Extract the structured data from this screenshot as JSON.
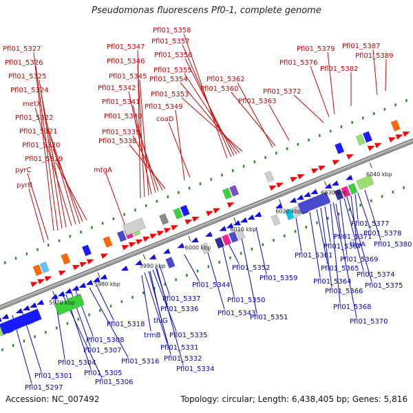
{
  "title": "Pseudomonas fluorescens Pf0-1, complete genome",
  "footer": {
    "accession": "Accession: NC_007492",
    "summary": "Topology: circular; Length: 6,438,405 bp; Genes: 5,816"
  },
  "colors": {
    "upper_label": "#cc0000",
    "lower_label": "#0000cc",
    "upper_arrow": "#ff0000",
    "lower_arrow": "#1010e0",
    "backbone": "#9a9a9a",
    "dot": "#2e8b2e"
  },
  "ticks": [
    "5970 kbp",
    "5980 kbp",
    "5990 kbp",
    "6000 kbp",
    "6010 kbp",
    "6020 kbp",
    "6030 kbp",
    "6040 kbp"
  ],
  "upper_labels": [
    "Pfl01_5327",
    "Pfl01_5326",
    "Pfl01_5325",
    "Pfl01_5324",
    "metX",
    "Pfl01_5322",
    "Pfl01_5321",
    "Pfl01_5320",
    "Pfl01_5319",
    "pyrC",
    "pyrB",
    "mtgA",
    "Pfl01_5347",
    "Pfl01_5346",
    "Pfl01_5345",
    "Pfl01_5342",
    "Pfl01_5341",
    "Pfl01_5340",
    "Pfl01_5339",
    "Pfl01_5338",
    "Pfl01_5358",
    "Pfl01_5357",
    "Pfl01_5356",
    "Pfl01_5355",
    "Pfl01_5354",
    "Pfl01_5353",
    "Pfl01_5349",
    "coaD",
    "Pfl01_5362",
    "Pfl01_5360",
    "Pfl01_5363",
    "Pfl01_5372",
    "Pfl01_5379",
    "Pfl01_5376",
    "Pfl01_5382",
    "Pfl01_5387",
    "Pfl01_5389"
  ],
  "lower_labels": [
    "Pfl01_5377",
    "Pfl01_5378",
    "Pfl01_5371",
    "thyA",
    "Pfl01_5380",
    "Pfl01_5367",
    "Pfl01_5361",
    "Pfl01_5369",
    "Pfl01_5365",
    "Pfl01_5352",
    "Pfl01_5359",
    "Pfl01_5364",
    "Pfl01_5374",
    "Pfl01_5375",
    "Pfl01_5366",
    "Pfl01_5344",
    "Pfl01_5350",
    "Pfl01_5337",
    "Pfl01_5336",
    "Pfl01_5343",
    "Pfl01_5368",
    "Pfl01_5351",
    "Pfl01_5370",
    "Pfl01_5318",
    "thiG",
    "trmB",
    "Pfl01_5335",
    "Pfl01_5308",
    "Pfl01_5307",
    "Pfl01_5331",
    "Pfl01_5332",
    "Pfl01_5316",
    "Pfl01_5334",
    "Pfl01_5304",
    "Pfl01_5305",
    "Pfl01_5306",
    "Pfl01_5301",
    "Pfl01_5297"
  ]
}
